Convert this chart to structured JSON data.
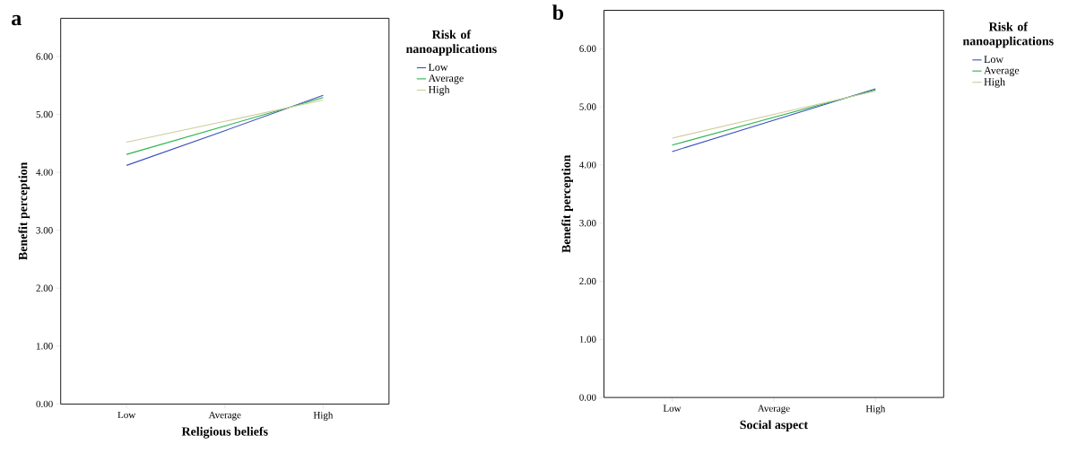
{
  "chart_data": [
    {
      "type": "line",
      "title": "a",
      "xlabel": "Religious beliefs",
      "ylabel": "Benefit perception",
      "legend_title": "Risk of nanoapplications",
      "legend": "top right",
      "categories": [
        "Low",
        "Average",
        "High"
      ],
      "series": [
        {
          "name": "Low",
          "color": "#3c4fbe",
          "values": [
            4.12,
            4.72,
            5.33
          ]
        },
        {
          "name": "Average",
          "color": "#2ab24a",
          "values": [
            4.31,
            4.8,
            5.29
          ]
        },
        {
          "name": "High",
          "color": "#d0cc9a",
          "values": [
            4.52,
            4.88,
            5.25
          ]
        }
      ],
      "ylim": [
        0,
        6.66
      ],
      "yticks": [
        {
          "value": 0,
          "label": "0.00"
        },
        {
          "value": 1,
          "label": "1.00"
        },
        {
          "value": 2,
          "label": "2.00"
        },
        {
          "value": 3,
          "label": "3.00"
        },
        {
          "value": 4,
          "label": "4.00"
        },
        {
          "value": 5,
          "label": "5.00"
        },
        {
          "value": 6,
          "label": "6.00"
        }
      ]
    },
    {
      "type": "line",
      "title": "b",
      "xlabel": "Social aspect",
      "ylabel": "Benefit perception",
      "legend_title": "Risk of nanoapplications",
      "legend": "top right",
      "categories": [
        "Low",
        "Average",
        "High"
      ],
      "series": [
        {
          "name": "Low",
          "color": "#3c4fbe",
          "values": [
            4.23,
            4.77,
            5.31
          ]
        },
        {
          "name": "Average",
          "color": "#2ab24a",
          "values": [
            4.34,
            4.82,
            5.29
          ]
        },
        {
          "name": "High",
          "color": "#d0cc9a",
          "values": [
            4.46,
            4.87,
            5.27
          ]
        }
      ],
      "ylim": [
        0,
        6.66
      ],
      "yticks": [
        {
          "value": 0,
          "label": "0.00"
        },
        {
          "value": 1,
          "label": "1.00"
        },
        {
          "value": 2,
          "label": "2.00"
        },
        {
          "value": 3,
          "label": "3.00"
        },
        {
          "value": 4,
          "label": "4.00"
        },
        {
          "value": 5,
          "label": "5.00"
        },
        {
          "value": 6,
          "label": "6.00"
        }
      ]
    }
  ]
}
